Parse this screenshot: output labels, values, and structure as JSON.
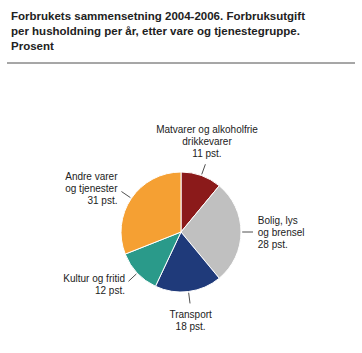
{
  "chart_data": {
    "type": "pie",
    "title": "Forbrukets sammensetning 2004-2006. Forbruksutgift\nper husholdning per år, etter vare og tjenestegruppe.\nProsent",
    "categories": [
      "Matvarer og alkoholfrie\ndrikkevarer",
      "Bolig, lys\nog brensel",
      "Transport",
      "Kultur og fritid",
      "Andre varer\nog tjenester"
    ],
    "values": [
      11,
      28,
      18,
      12,
      31
    ],
    "value_labels": [
      "11 pst.",
      "28 pst.",
      "18 pst.",
      "12 pst.",
      "31 pst."
    ],
    "data_labels": true,
    "colors": [
      "#8B1A1A",
      "#C0C0C0",
      "#1F3A7A",
      "#2A9A8A",
      "#F5A033"
    ]
  }
}
